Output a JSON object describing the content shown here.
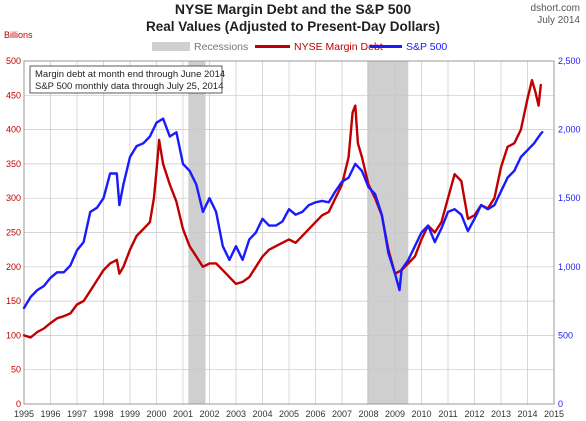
{
  "header": {
    "title_line1": "NYSE Margin Debt and the S&P 500",
    "title_line2": "Real Values (Adjusted to Present-Day Dollars)",
    "source": "dshort.com",
    "date": "July 2014",
    "left_unit": "Billions"
  },
  "colors": {
    "margin": "#c00000",
    "sp500": "#1a1aff",
    "recession": "#cfcfcf",
    "grid": "#c8c8c8"
  },
  "chart_data": {
    "type": "line",
    "x_range": [
      1995,
      2015
    ],
    "x_ticks": [
      "1995",
      "1996",
      "1997",
      "1998",
      "1999",
      "2000",
      "2001",
      "2002",
      "2003",
      "2004",
      "2005",
      "2006",
      "2007",
      "2008",
      "2009",
      "2010",
      "2011",
      "2012",
      "2013",
      "2014",
      "2015"
    ],
    "y_left": {
      "range": [
        0,
        500
      ],
      "ticks": [
        "0",
        "50",
        "100",
        "150",
        "200",
        "250",
        "300",
        "350",
        "400",
        "450",
        "500"
      ]
    },
    "y_right": {
      "range": [
        0,
        2500
      ],
      "ticks": [
        "0",
        "500",
        "1,000",
        "1,500",
        "2,000",
        "2,500"
      ]
    },
    "legend": [
      "Recessions",
      "NYSE Margin Debt",
      "S&P 500"
    ],
    "annotation": [
      "Margin debt at month end through June 2014",
      "S&P 500 monthly data through July 25, 2014"
    ],
    "recessions": [
      [
        2001.2,
        2001.85
      ],
      [
        2007.95,
        2009.5
      ]
    ],
    "series": [
      {
        "name": "NYSE Margin Debt",
        "axis": "left",
        "points": [
          [
            1995.0,
            100
          ],
          [
            1995.25,
            97
          ],
          [
            1995.5,
            105
          ],
          [
            1995.75,
            110
          ],
          [
            1996.0,
            118
          ],
          [
            1996.25,
            125
          ],
          [
            1996.5,
            128
          ],
          [
            1996.75,
            132
          ],
          [
            1997.0,
            145
          ],
          [
            1997.25,
            150
          ],
          [
            1997.5,
            165
          ],
          [
            1997.75,
            180
          ],
          [
            1998.0,
            195
          ],
          [
            1998.25,
            205
          ],
          [
            1998.5,
            210
          ],
          [
            1998.6,
            190
          ],
          [
            1998.75,
            200
          ],
          [
            1999.0,
            225
          ],
          [
            1999.25,
            245
          ],
          [
            1999.5,
            255
          ],
          [
            1999.75,
            265
          ],
          [
            1999.9,
            300
          ],
          [
            2000.0,
            340
          ],
          [
            2000.1,
            385
          ],
          [
            2000.25,
            350
          ],
          [
            2000.5,
            320
          ],
          [
            2000.75,
            295
          ],
          [
            2001.0,
            255
          ],
          [
            2001.25,
            230
          ],
          [
            2001.5,
            215
          ],
          [
            2001.75,
            200
          ],
          [
            2002.0,
            205
          ],
          [
            2002.25,
            205
          ],
          [
            2002.5,
            195
          ],
          [
            2002.75,
            185
          ],
          [
            2003.0,
            175
          ],
          [
            2003.25,
            178
          ],
          [
            2003.5,
            185
          ],
          [
            2003.75,
            200
          ],
          [
            2004.0,
            215
          ],
          [
            2004.25,
            225
          ],
          [
            2004.5,
            230
          ],
          [
            2004.75,
            235
          ],
          [
            2005.0,
            240
          ],
          [
            2005.25,
            235
          ],
          [
            2005.5,
            245
          ],
          [
            2005.75,
            255
          ],
          [
            2006.0,
            265
          ],
          [
            2006.25,
            275
          ],
          [
            2006.5,
            280
          ],
          [
            2006.75,
            300
          ],
          [
            2007.0,
            320
          ],
          [
            2007.25,
            360
          ],
          [
            2007.4,
            425
          ],
          [
            2007.5,
            435
          ],
          [
            2007.6,
            380
          ],
          [
            2007.75,
            360
          ],
          [
            2008.0,
            320
          ],
          [
            2008.25,
            300
          ],
          [
            2008.5,
            275
          ],
          [
            2008.75,
            225
          ],
          [
            2009.0,
            190
          ],
          [
            2009.25,
            195
          ],
          [
            2009.5,
            205
          ],
          [
            2009.75,
            215
          ],
          [
            2010.0,
            240
          ],
          [
            2010.25,
            260
          ],
          [
            2010.5,
            250
          ],
          [
            2010.75,
            265
          ],
          [
            2011.0,
            300
          ],
          [
            2011.25,
            335
          ],
          [
            2011.5,
            325
          ],
          [
            2011.75,
            270
          ],
          [
            2012.0,
            275
          ],
          [
            2012.25,
            290
          ],
          [
            2012.5,
            285
          ],
          [
            2012.75,
            300
          ],
          [
            2013.0,
            345
          ],
          [
            2013.25,
            375
          ],
          [
            2013.5,
            380
          ],
          [
            2013.75,
            400
          ],
          [
            2014.0,
            445
          ],
          [
            2014.17,
            472
          ],
          [
            2014.3,
            455
          ],
          [
            2014.42,
            435
          ],
          [
            2014.5,
            465
          ]
        ]
      },
      {
        "name": "S&P 500",
        "axis": "right",
        "points": [
          [
            1995.0,
            700
          ],
          [
            1995.25,
            780
          ],
          [
            1995.5,
            830
          ],
          [
            1995.75,
            860
          ],
          [
            1996.0,
            920
          ],
          [
            1996.25,
            960
          ],
          [
            1996.5,
            960
          ],
          [
            1996.75,
            1010
          ],
          [
            1997.0,
            1120
          ],
          [
            1997.25,
            1180
          ],
          [
            1997.5,
            1400
          ],
          [
            1997.75,
            1430
          ],
          [
            1998.0,
            1500
          ],
          [
            1998.25,
            1680
          ],
          [
            1998.5,
            1680
          ],
          [
            1998.6,
            1450
          ],
          [
            1998.75,
            1600
          ],
          [
            1999.0,
            1800
          ],
          [
            1999.25,
            1880
          ],
          [
            1999.5,
            1900
          ],
          [
            1999.75,
            1950
          ],
          [
            2000.0,
            2050
          ],
          [
            2000.25,
            2080
          ],
          [
            2000.5,
            1950
          ],
          [
            2000.75,
            1980
          ],
          [
            2001.0,
            1750
          ],
          [
            2001.25,
            1700
          ],
          [
            2001.5,
            1600
          ],
          [
            2001.75,
            1400
          ],
          [
            2002.0,
            1500
          ],
          [
            2002.25,
            1400
          ],
          [
            2002.5,
            1150
          ],
          [
            2002.75,
            1050
          ],
          [
            2003.0,
            1150
          ],
          [
            2003.25,
            1050
          ],
          [
            2003.5,
            1200
          ],
          [
            2003.75,
            1250
          ],
          [
            2004.0,
            1350
          ],
          [
            2004.25,
            1300
          ],
          [
            2004.5,
            1300
          ],
          [
            2004.75,
            1330
          ],
          [
            2005.0,
            1420
          ],
          [
            2005.25,
            1380
          ],
          [
            2005.5,
            1400
          ],
          [
            2005.75,
            1450
          ],
          [
            2006.0,
            1470
          ],
          [
            2006.25,
            1480
          ],
          [
            2006.5,
            1470
          ],
          [
            2006.75,
            1550
          ],
          [
            2007.0,
            1620
          ],
          [
            2007.25,
            1650
          ],
          [
            2007.5,
            1750
          ],
          [
            2007.75,
            1700
          ],
          [
            2008.0,
            1580
          ],
          [
            2008.25,
            1530
          ],
          [
            2008.5,
            1380
          ],
          [
            2008.75,
            1100
          ],
          [
            2009.0,
            950
          ],
          [
            2009.17,
            830
          ],
          [
            2009.25,
            980
          ],
          [
            2009.5,
            1050
          ],
          [
            2009.75,
            1150
          ],
          [
            2010.0,
            1250
          ],
          [
            2010.25,
            1300
          ],
          [
            2010.5,
            1180
          ],
          [
            2010.75,
            1280
          ],
          [
            2011.0,
            1400
          ],
          [
            2011.25,
            1420
          ],
          [
            2011.5,
            1380
          ],
          [
            2011.75,
            1260
          ],
          [
            2012.0,
            1350
          ],
          [
            2012.25,
            1450
          ],
          [
            2012.5,
            1420
          ],
          [
            2012.75,
            1450
          ],
          [
            2013.0,
            1550
          ],
          [
            2013.25,
            1650
          ],
          [
            2013.5,
            1700
          ],
          [
            2013.75,
            1800
          ],
          [
            2014.0,
            1850
          ],
          [
            2014.25,
            1900
          ],
          [
            2014.5,
            1970
          ],
          [
            2014.56,
            1980
          ]
        ]
      }
    ]
  }
}
